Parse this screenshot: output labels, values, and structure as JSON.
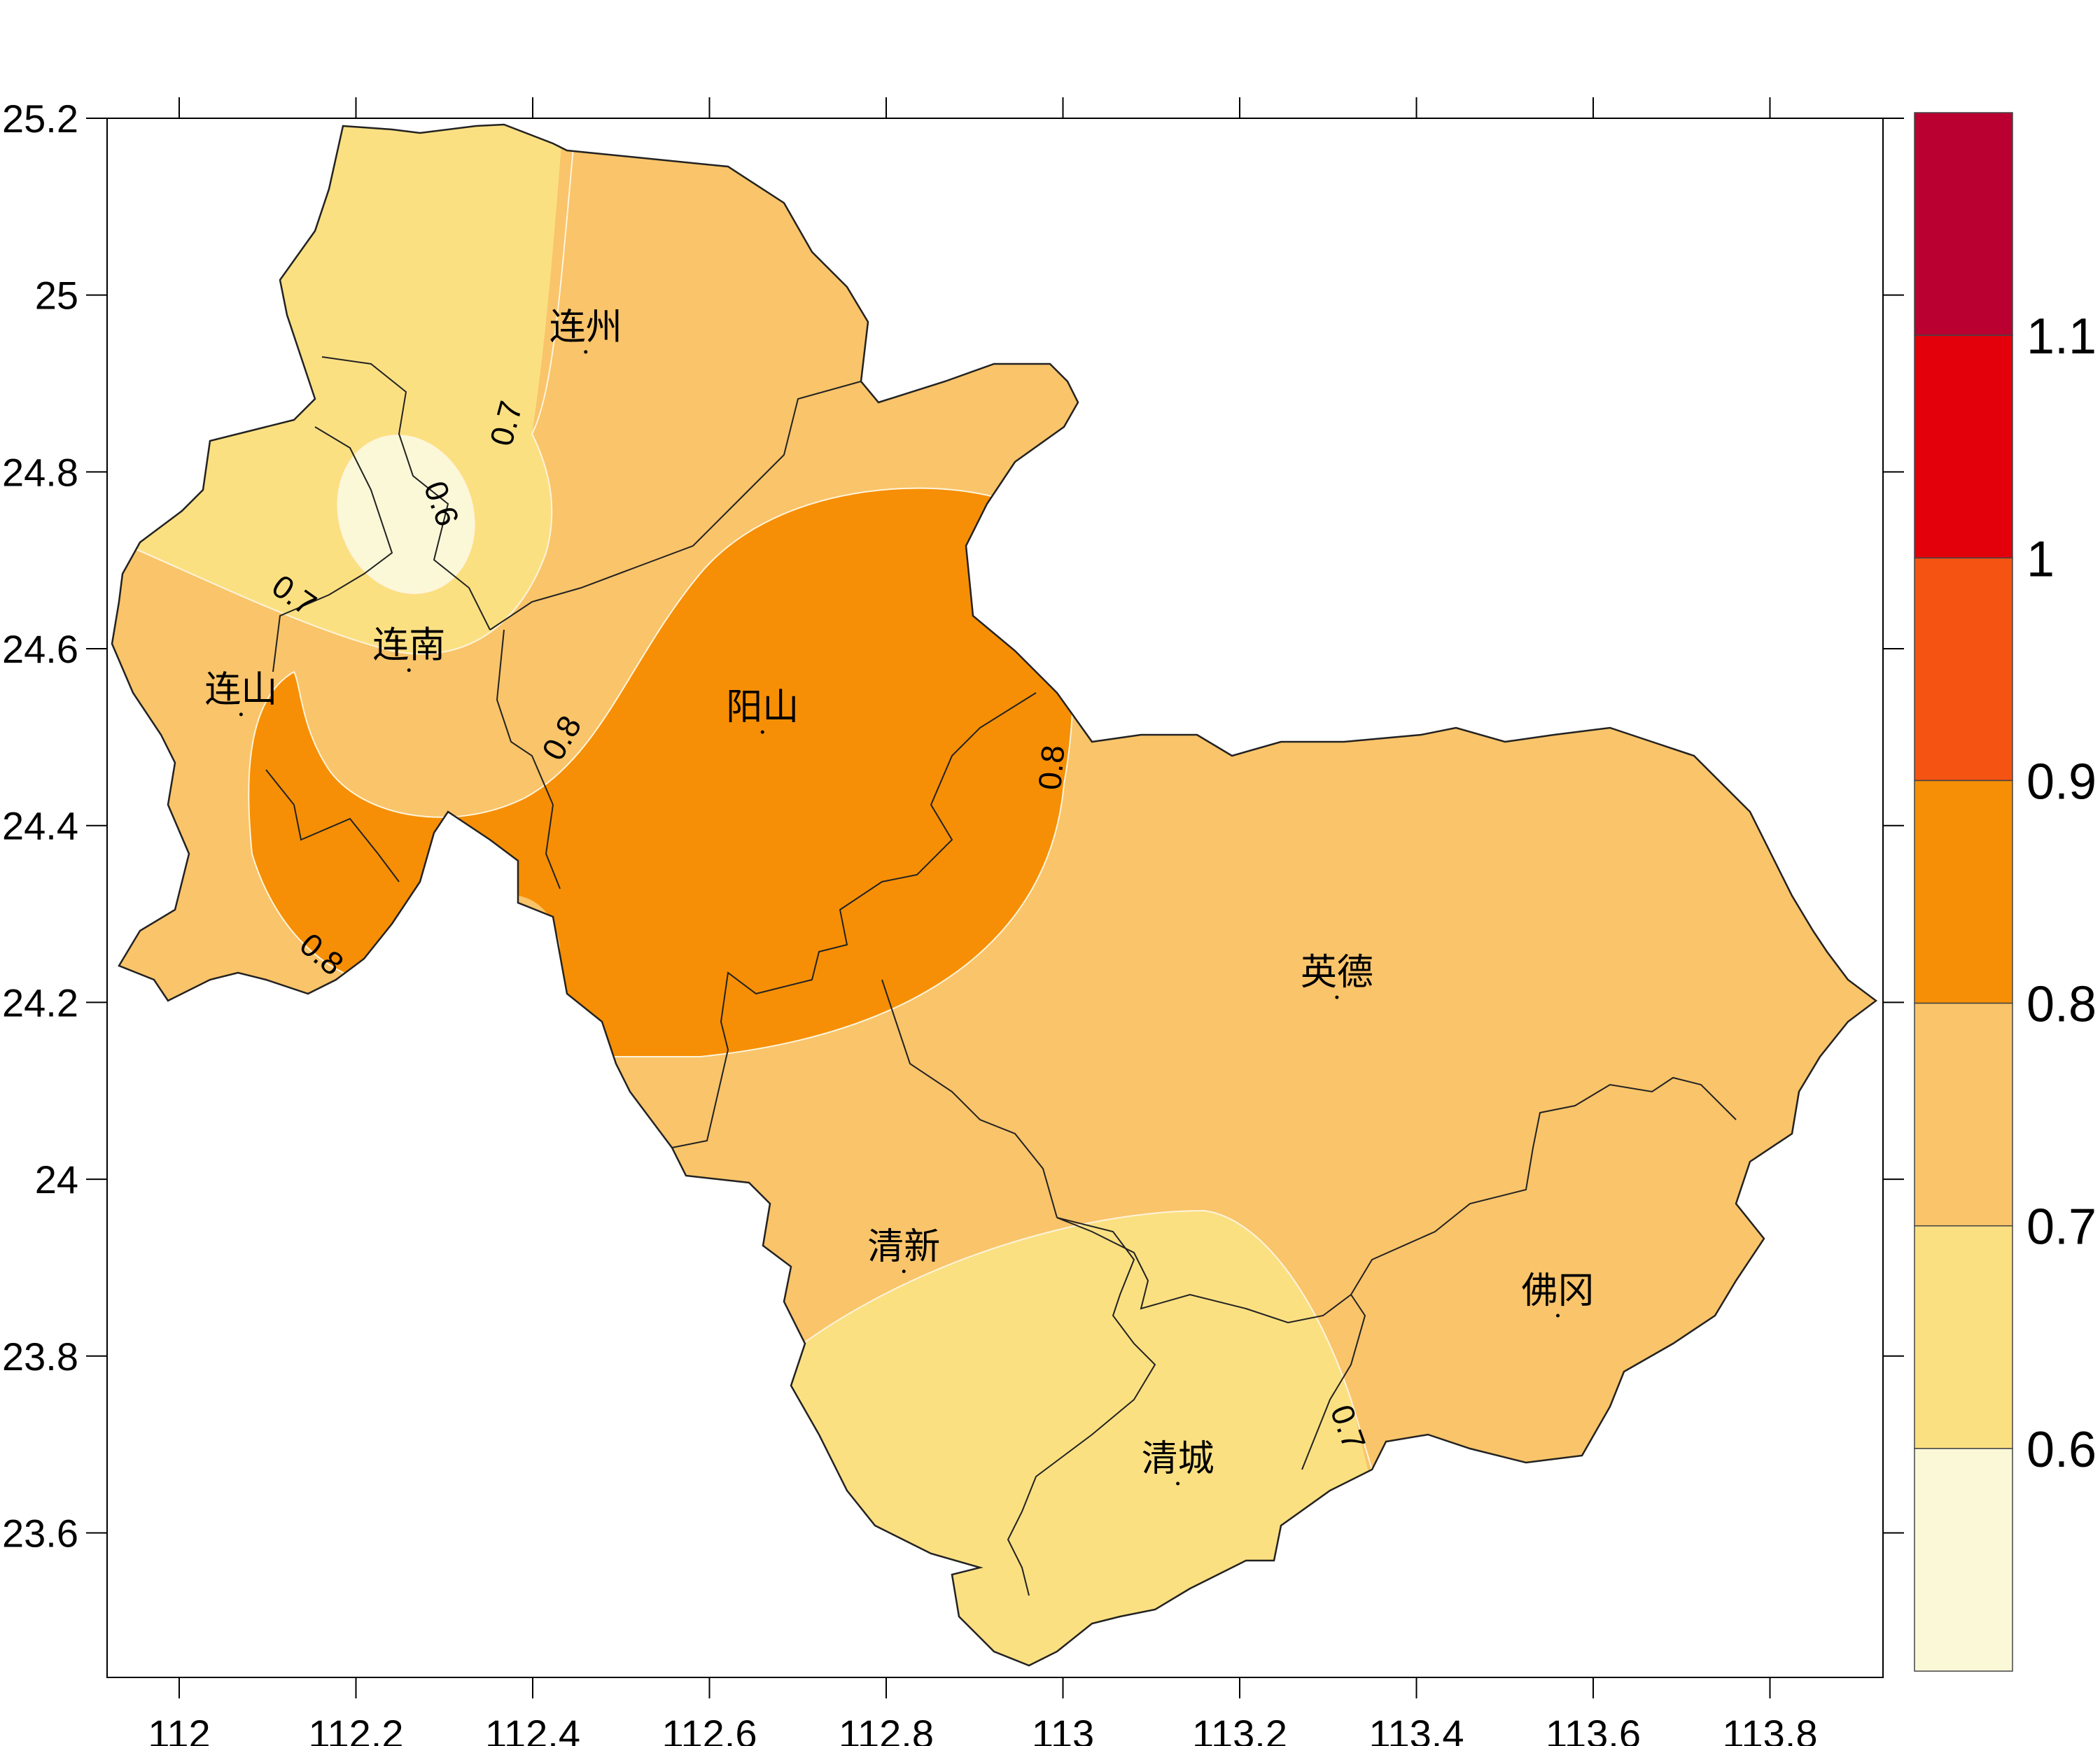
{
  "axes": {
    "x_ticks": [
      "112",
      "112.2",
      "112.4",
      "112.6",
      "112.8",
      "113",
      "113.2",
      "113.4",
      "113.6",
      "113.8"
    ],
    "y_ticks": [
      "25.2",
      "25",
      "24.8",
      "24.6",
      "24.4",
      "24.2",
      "24",
      "23.8",
      "23.6"
    ],
    "x_range": [
      111.92,
      113.93
    ],
    "y_range": [
      23.45,
      25.2
    ]
  },
  "legend": {
    "colors": [
      "#fbf8d8",
      "#fbe082",
      "#f9c46a",
      "#f68f05",
      "#f45312",
      "#e4000b",
      "#b90030"
    ],
    "labels": [
      "0.6",
      "0.7",
      "0.8",
      "0.9",
      "1",
      "1.1"
    ]
  },
  "places": [
    {
      "name": "连州",
      "lon": 112.46,
      "lat": 24.95
    },
    {
      "name": "连南",
      "lon": 112.26,
      "lat": 24.59
    },
    {
      "name": "连山",
      "lon": 112.07,
      "lat": 24.54
    },
    {
      "name": "阳山",
      "lon": 112.66,
      "lat": 24.52
    },
    {
      "name": "英德",
      "lon": 113.31,
      "lat": 24.22
    },
    {
      "name": "清新",
      "lon": 112.82,
      "lat": 23.91
    },
    {
      "name": "佛冈",
      "lon": 113.56,
      "lat": 23.86
    },
    {
      "name": "清城",
      "lon": 113.13,
      "lat": 23.67
    }
  ],
  "contour_labels": [
    "0.7",
    "0.6",
    "0.7",
    "0.8",
    "0.8",
    "0.8",
    "0.7"
  ],
  "colors": {
    "border": "#222222",
    "contour_line": "#fff4dc"
  }
}
